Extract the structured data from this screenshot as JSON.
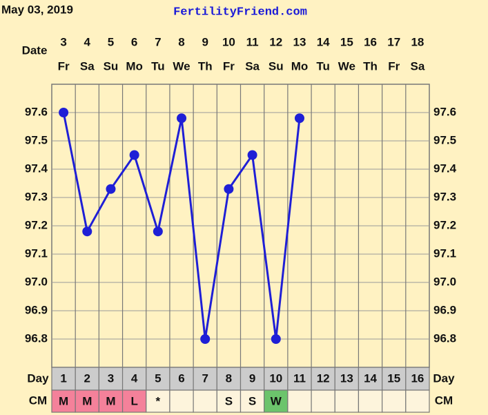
{
  "header": "May 03, 2019",
  "site": "FertilityFriend.com",
  "chart_data": {
    "type": "line",
    "date_label": "Date",
    "categories": [
      "3",
      "4",
      "5",
      "6",
      "7",
      "8",
      "9",
      "10",
      "11",
      "12",
      "13",
      "14",
      "15",
      "16",
      "17",
      "18"
    ],
    "weekdays": [
      "Fr",
      "Sa",
      "Su",
      "Mo",
      "Tu",
      "We",
      "Th",
      "Fr",
      "Sa",
      "Su",
      "Mo",
      "Tu",
      "We",
      "Th",
      "Fr",
      "Sa"
    ],
    "series": [
      {
        "color": "#1f1fd6",
        "values": [
          97.6,
          97.18,
          97.33,
          97.45,
          97.18,
          97.58,
          96.8,
          97.33,
          97.45,
          96.8,
          97.58,
          null,
          null,
          null,
          null,
          null
        ]
      }
    ],
    "ylim": [
      96.7,
      97.7
    ],
    "yticks": [
      96.8,
      96.9,
      {
        "value": 97.0,
        "label": "97.0"
      },
      97.1,
      97.2,
      97.3,
      97.4,
      97.5,
      97.6
    ],
    "grid": true,
    "day_label": "Day",
    "cycle_days": [
      1,
      2,
      3,
      4,
      5,
      6,
      7,
      8,
      9,
      10,
      11,
      12,
      13,
      14,
      15,
      16
    ],
    "cm_label": "CM",
    "cm": [
      "M",
      "M",
      "M",
      "L",
      "*",
      null,
      null,
      "S",
      "S",
      "W",
      null,
      null,
      null,
      null,
      null,
      null
    ],
    "cm_colors": [
      "#f4819a",
      "#f4819a",
      "#f4819a",
      "#f4819a",
      "#fdf4dc",
      "#fdf4dc",
      "#fdf4dc",
      "#fdf4dc",
      "#fdf4dc",
      "#6cc46c",
      "#fdf4dc",
      "#fdf4dc",
      "#fdf4dc",
      "#fdf4dc",
      "#fdf4dc",
      "#fdf4dc"
    ]
  }
}
